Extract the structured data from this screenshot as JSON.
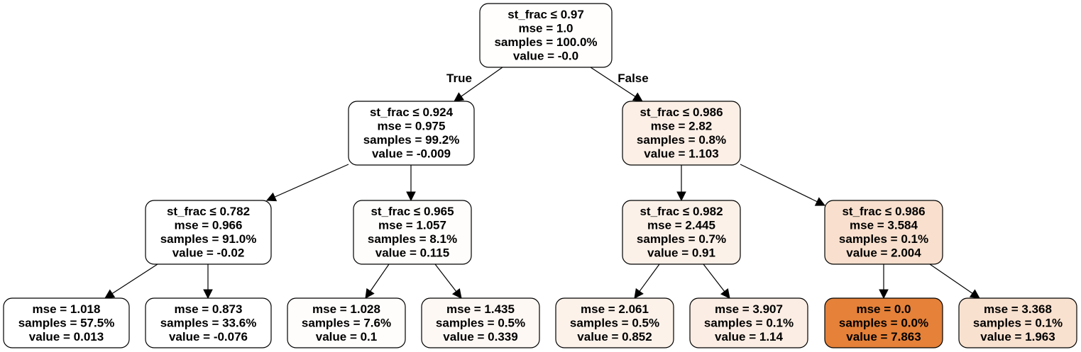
{
  "tree": {
    "branch_labels": {
      "true": "True",
      "false": "False"
    },
    "nodes": [
      {
        "id": "n0",
        "split": "st_frac ≤ 0.97",
        "mse": "mse = 1.0",
        "samples": "samples = 100.0%",
        "value": "value = -0.0",
        "value_num": -0.0,
        "fill": "#fffefd"
      },
      {
        "id": "n1",
        "split": "st_frac ≤ 0.924",
        "mse": "mse = 0.975",
        "samples": "samples = 99.2%",
        "value": "value = -0.009",
        "value_num": -0.009,
        "fill": "#ffffff"
      },
      {
        "id": "n2",
        "split": "st_frac ≤ 0.782",
        "mse": "mse = 0.966",
        "samples": "samples = 91.0%",
        "value": "value = -0.02",
        "value_num": -0.02,
        "fill": "#ffffff"
      },
      {
        "id": "n3",
        "split": "",
        "mse": "mse = 1.018",
        "samples": "samples = 57.5%",
        "value": "value = 0.013",
        "value_num": 0.013,
        "fill": "#ffffff"
      },
      {
        "id": "n4",
        "split": "",
        "mse": "mse = 0.873",
        "samples": "samples = 33.6%",
        "value": "value = -0.076",
        "value_num": -0.076,
        "fill": "#ffffff"
      },
      {
        "id": "n5",
        "split": "st_frac ≤ 0.965",
        "mse": "mse = 1.057",
        "samples": "samples = 8.1%",
        "value": "value = 0.115",
        "value_num": 0.115,
        "fill": "#fffdfb"
      },
      {
        "id": "n6",
        "split": "",
        "mse": "mse = 1.028",
        "samples": "samples = 7.6%",
        "value": "value = 0.1",
        "value_num": 0.1,
        "fill": "#fffdfb"
      },
      {
        "id": "n7",
        "split": "",
        "mse": "mse = 1.435",
        "samples": "samples = 0.5%",
        "value": "value = 0.339",
        "value_num": 0.339,
        "fill": "#fef8f4"
      },
      {
        "id": "n8",
        "split": "st_frac ≤ 0.986",
        "mse": "mse = 2.82",
        "samples": "samples = 0.8%",
        "value": "value = 1.103",
        "value_num": 1.103,
        "fill": "#fcefe6"
      },
      {
        "id": "n9",
        "split": "st_frac ≤ 0.982",
        "mse": "mse = 2.445",
        "samples": "samples = 0.7%",
        "value": "value = 0.91",
        "value_num": 0.91,
        "fill": "#fcf1e9"
      },
      {
        "id": "n10",
        "split": "",
        "mse": "mse = 2.061",
        "samples": "samples = 0.5%",
        "value": "value = 0.852",
        "value_num": 0.852,
        "fill": "#fcf2ea"
      },
      {
        "id": "n11",
        "split": "",
        "mse": "mse = 3.907",
        "samples": "samples = 0.1%",
        "value": "value = 1.14",
        "value_num": 1.14,
        "fill": "#fbede3"
      },
      {
        "id": "n12",
        "split": "st_frac ≤ 0.986",
        "mse": "mse = 3.584",
        "samples": "samples = 0.1%",
        "value": "value = 2.004",
        "value_num": 2.004,
        "fill": "#f9e0ce"
      },
      {
        "id": "n13",
        "split": "",
        "mse": "mse = 0.0",
        "samples": "samples = 0.0%",
        "value": "value = 7.863",
        "value_num": 7.863,
        "fill": "#e58139"
      },
      {
        "id": "n14",
        "split": "",
        "mse": "mse = 3.368",
        "samples": "samples = 0.1%",
        "value": "value = 1.963",
        "value_num": 1.963,
        "fill": "#f9e1cf"
      }
    ],
    "edges": [
      {
        "from": "n0",
        "to": "n1",
        "label": "true"
      },
      {
        "from": "n0",
        "to": "n8",
        "label": "false"
      },
      {
        "from": "n1",
        "to": "n2"
      },
      {
        "from": "n1",
        "to": "n5"
      },
      {
        "from": "n2",
        "to": "n3"
      },
      {
        "from": "n2",
        "to": "n4"
      },
      {
        "from": "n5",
        "to": "n6"
      },
      {
        "from": "n5",
        "to": "n7"
      },
      {
        "from": "n8",
        "to": "n9"
      },
      {
        "from": "n8",
        "to": "n12"
      },
      {
        "from": "n9",
        "to": "n10"
      },
      {
        "from": "n9",
        "to": "n11"
      },
      {
        "from": "n12",
        "to": "n13"
      },
      {
        "from": "n12",
        "to": "n14"
      }
    ]
  }
}
